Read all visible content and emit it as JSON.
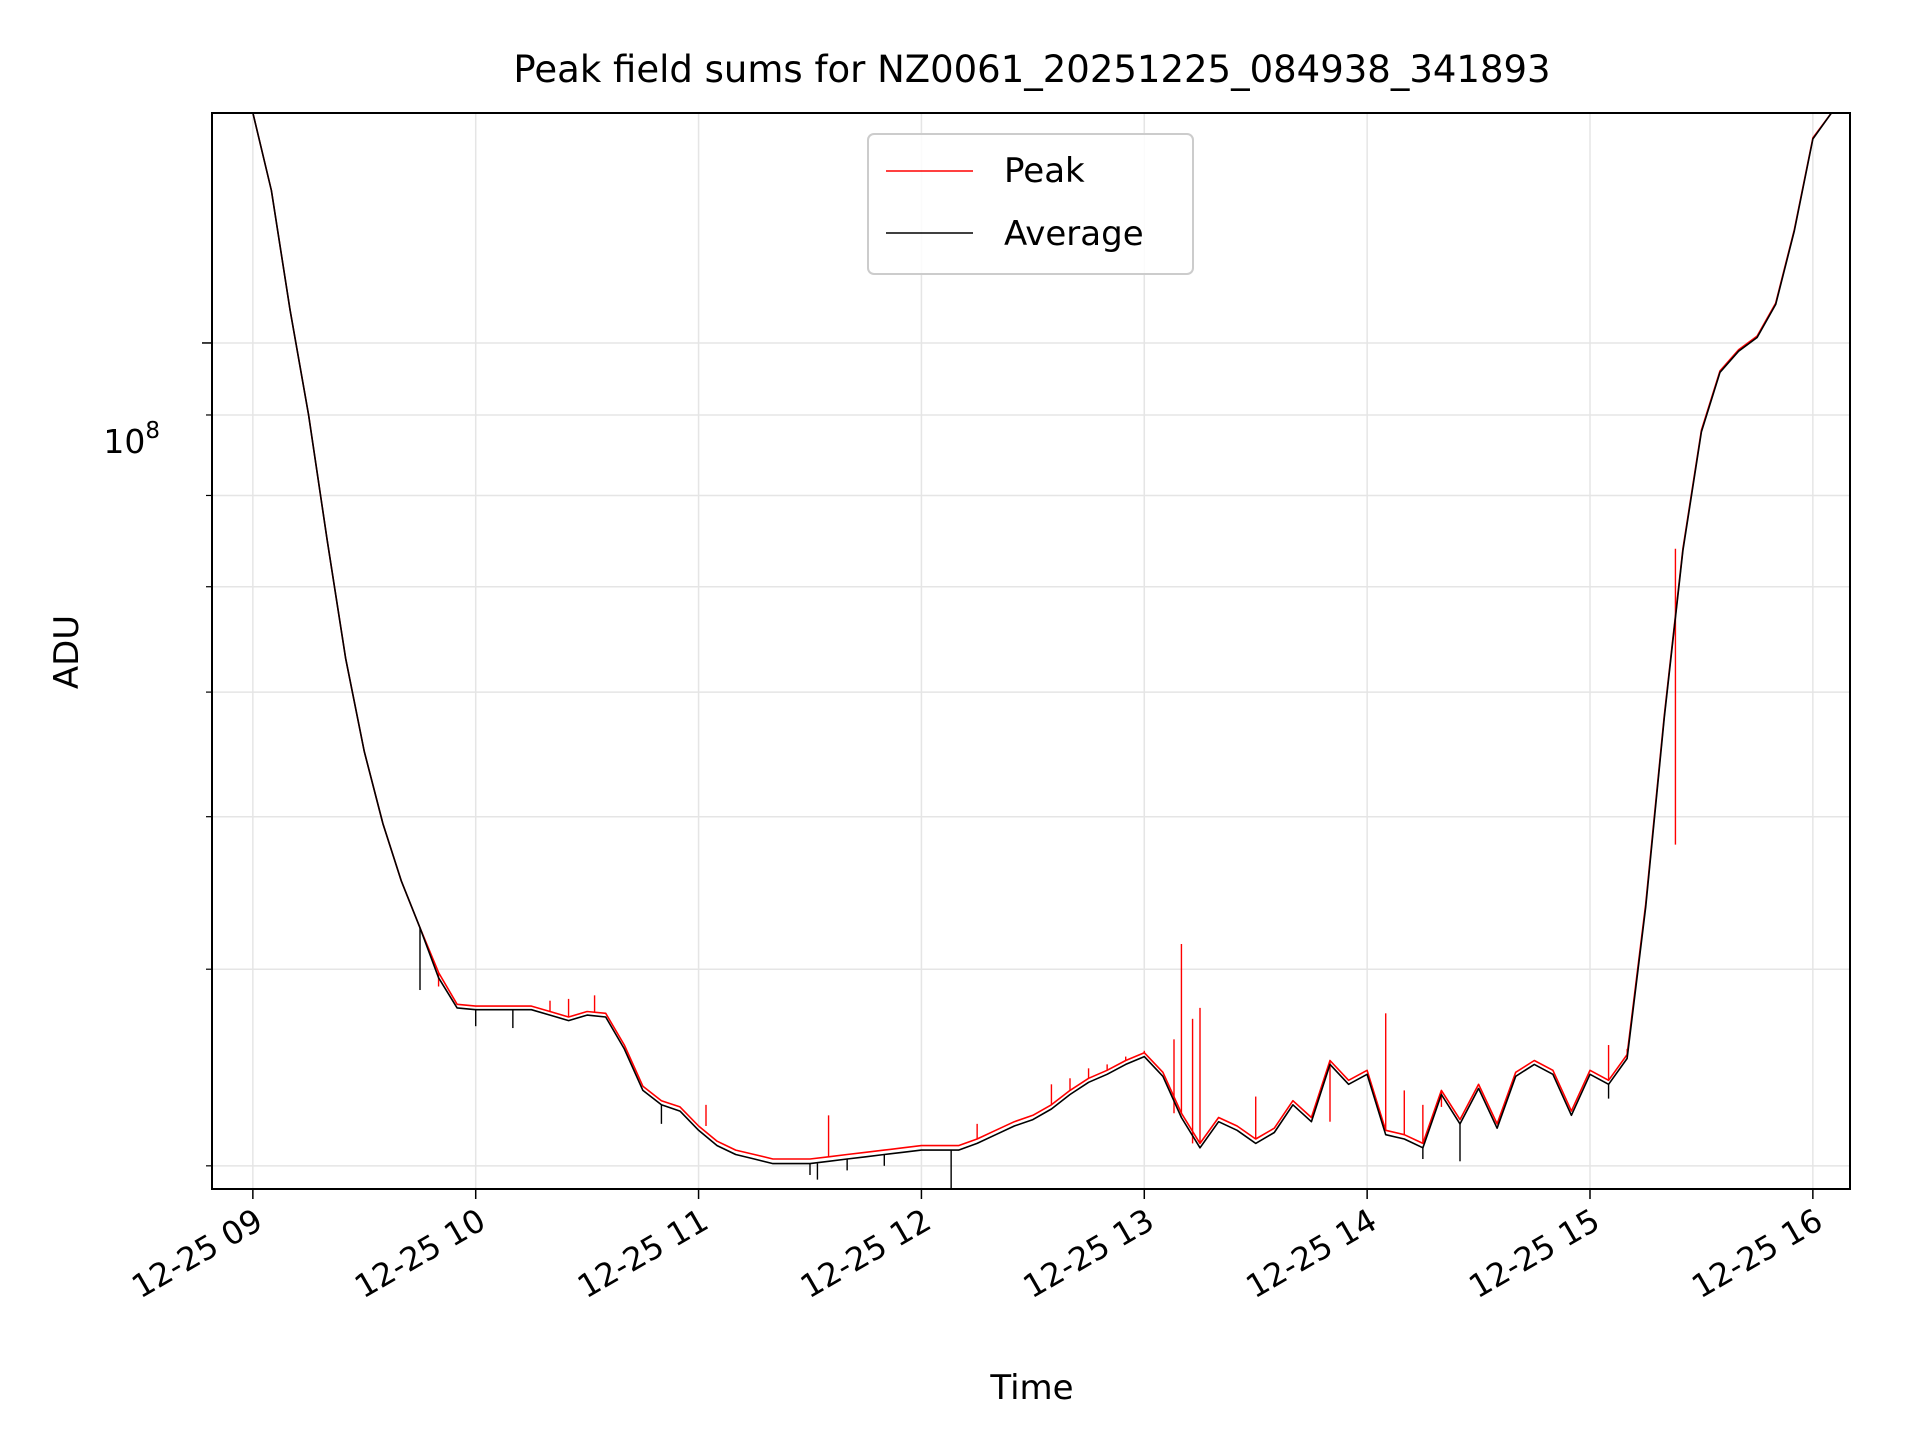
{
  "chart_data": {
    "type": "line",
    "title": "Peak field sums for NZ0061_20251225_084938_341893",
    "xlabel": "Time",
    "ylabel": "ADU",
    "y_scale": "log",
    "y_tick_label": "10",
    "y_tick_exponent": "8",
    "y_tick_value": 100000000,
    "x_tick_labels": [
      "12-25 09",
      "12-25 10",
      "12-25 11",
      "12-25 12",
      "12-25 13",
      "12-25 14",
      "12-25 15",
      "12-25 16"
    ],
    "x_ticks": [
      "2025-12-25 09:00",
      "2025-12-25 10:00",
      "2025-12-25 11:00",
      "2025-12-25 12:00",
      "2025-12-25 13:00",
      "2025-12-25 14:00",
      "2025-12-25 15:00",
      "2025-12-25 16:00"
    ],
    "xlim": [
      "2025-12-25 08:49",
      "2025-12-25 16:10"
    ],
    "ylim": [
      29000000,
      140000000
    ],
    "grid": true,
    "legend_position": "upper center",
    "series": [
      {
        "name": "Peak",
        "color": "#ff0000",
        "x": [
          "08:60",
          "09:05",
          "09:10",
          "09:15",
          "09:20",
          "09:25",
          "09:30",
          "09:35",
          "09:40",
          "09:45",
          "09:50",
          "09:55",
          "10:00",
          "10:05",
          "10:10",
          "10:15",
          "10:20",
          "10:25",
          "10:30",
          "10:35",
          "10:40",
          "10:45",
          "10:50",
          "10:55",
          "11:00",
          "11:05",
          "11:10",
          "11:15",
          "11:20",
          "11:25",
          "11:30",
          "11:35",
          "11:40",
          "11:45",
          "11:50",
          "11:55",
          "12:00",
          "12:05",
          "12:10",
          "12:15",
          "12:20",
          "12:25",
          "12:30",
          "12:35",
          "12:40",
          "12:45",
          "12:50",
          "12:55",
          "13:00",
          "13:05",
          "13:10",
          "13:15",
          "13:20",
          "13:25",
          "13:30",
          "13:35",
          "13:40",
          "13:45",
          "13:50",
          "13:55",
          "14:00",
          "14:05",
          "14:10",
          "14:15",
          "14:20",
          "14:25",
          "14:30",
          "14:35",
          "14:40",
          "14:45",
          "14:50",
          "14:55",
          "15:00",
          "15:05",
          "15:10",
          "15:15",
          "15:20",
          "15:25",
          "15:30",
          "15:35",
          "15:40",
          "15:45",
          "15:50",
          "15:55",
          "16:00",
          "16:05"
        ],
        "y": [
          140000000,
          125000000,
          105000000,
          90000000,
          75000000,
          63000000,
          55000000,
          49500000,
          45500000,
          42500000,
          39800000,
          38000000,
          37900000,
          37900000,
          37900000,
          37900000,
          37600000,
          37300000,
          37600000,
          37500000,
          35800000,
          33700000,
          33000000,
          32700000,
          31800000,
          31100000,
          30700000,
          30500000,
          30300000,
          30300000,
          30300000,
          30400000,
          30500000,
          30600000,
          30700000,
          30800000,
          30900000,
          30900000,
          30900000,
          31200000,
          31600000,
          32000000,
          32300000,
          32800000,
          33500000,
          34100000,
          34500000,
          35000000,
          35400000,
          34400000,
          32400000,
          31000000,
          32200000,
          31800000,
          31200000,
          31700000,
          33000000,
          32200000,
          35000000,
          34000000,
          34500000,
          31600000,
          31400000,
          31000000,
          33500000,
          32100000,
          33800000,
          31900000,
          34400000,
          35000000,
          34500000,
          32500000,
          34500000,
          34000000,
          35300000,
          44000000,
          58000000,
          74000000,
          88000000,
          96000000,
          99000000,
          101000000,
          106000000,
          118000000,
          135000000,
          140000000
        ],
        "spikes": [
          {
            "x": "09:50",
            "y": 39000000
          },
          {
            "x": "10:20",
            "y": 38200000
          },
          {
            "x": "10:25",
            "y": 38300000
          },
          {
            "x": "10:32",
            "y": 38500000
          },
          {
            "x": "11:02",
            "y": 32800000
          },
          {
            "x": "11:35",
            "y": 32300000
          },
          {
            "x": "12:15",
            "y": 31900000
          },
          {
            "x": "12:35",
            "y": 33800000
          },
          {
            "x": "12:40",
            "y": 34100000
          },
          {
            "x": "12:45",
            "y": 34600000
          },
          {
            "x": "12:50",
            "y": 34800000
          },
          {
            "x": "12:55",
            "y": 35200000
          },
          {
            "x": "13:00",
            "y": 35500000
          },
          {
            "x": "13:08",
            "y": 36100000
          },
          {
            "x": "13:10",
            "y": 41500000
          },
          {
            "x": "13:13",
            "y": 37200000
          },
          {
            "x": "13:15",
            "y": 37800000
          },
          {
            "x": "13:30",
            "y": 33200000
          },
          {
            "x": "13:40",
            "y": 33000000
          },
          {
            "x": "13:50",
            "y": 32000000
          },
          {
            "x": "14:05",
            "y": 37500000
          },
          {
            "x": "14:10",
            "y": 33500000
          },
          {
            "x": "14:15",
            "y": 32800000
          },
          {
            "x": "14:20",
            "y": 32700000
          },
          {
            "x": "15:05",
            "y": 35800000
          },
          {
            "x": "15:10",
            "y": 35600000
          },
          {
            "x": "15:23",
            "y": 48000000
          }
        ]
      },
      {
        "name": "Average",
        "color": "#000000",
        "x": [
          "08:60",
          "09:05",
          "09:10",
          "09:15",
          "09:20",
          "09:25",
          "09:30",
          "09:35",
          "09:40",
          "09:45",
          "09:50",
          "09:55",
          "10:00",
          "10:05",
          "10:10",
          "10:15",
          "10:20",
          "10:25",
          "10:30",
          "10:35",
          "10:40",
          "10:45",
          "10:50",
          "10:55",
          "11:00",
          "11:05",
          "11:10",
          "11:15",
          "11:20",
          "11:25",
          "11:30",
          "11:35",
          "11:40",
          "11:45",
          "11:50",
          "11:55",
          "12:00",
          "12:05",
          "12:10",
          "12:15",
          "12:20",
          "12:25",
          "12:30",
          "12:35",
          "12:40",
          "12:45",
          "12:50",
          "12:55",
          "13:00",
          "13:05",
          "13:10",
          "13:15",
          "13:20",
          "13:25",
          "13:30",
          "13:35",
          "13:40",
          "13:45",
          "13:50",
          "13:55",
          "14:00",
          "14:05",
          "14:10",
          "14:15",
          "14:20",
          "14:25",
          "14:30",
          "14:35",
          "14:40",
          "14:45",
          "14:50",
          "14:55",
          "15:00",
          "15:05",
          "15:10",
          "15:15",
          "15:20",
          "15:25",
          "15:30",
          "15:35",
          "15:40",
          "15:45",
          "15:50",
          "15:55",
          "16:00",
          "16:05"
        ],
        "y": [
          140000000,
          125000000,
          105000000,
          90000000,
          75000000,
          63000000,
          55000000,
          49500000,
          45500000,
          42500000,
          39500000,
          37800000,
          37700000,
          37700000,
          37700000,
          37700000,
          37400000,
          37100000,
          37400000,
          37300000,
          35600000,
          33500000,
          32800000,
          32500000,
          31600000,
          30900000,
          30500000,
          30300000,
          30100000,
          30100000,
          30100000,
          30200000,
          30300000,
          30400000,
          30500000,
          30600000,
          30700000,
          30700000,
          30700000,
          31000000,
          31400000,
          31800000,
          32100000,
          32600000,
          33300000,
          33900000,
          34300000,
          34800000,
          35200000,
          34200000,
          32200000,
          30800000,
          32000000,
          31600000,
          31000000,
          31500000,
          32800000,
          32000000,
          34800000,
          33800000,
          34300000,
          31400000,
          31200000,
          30800000,
          33300000,
          31900000,
          33600000,
          31700000,
          34200000,
          34800000,
          34300000,
          32300000,
          34300000,
          33800000,
          35100000,
          43800000,
          57800000,
          73800000,
          87800000,
          95800000,
          98800000,
          100800000,
          105800000,
          117800000,
          134800000,
          140000000
        ],
        "dips": [
          {
            "x": "09:45",
            "y": 38800000
          },
          {
            "x": "10:00",
            "y": 36800000
          },
          {
            "x": "10:10",
            "y": 36700000
          },
          {
            "x": "10:50",
            "y": 31900000
          },
          {
            "x": "11:30",
            "y": 29600000
          },
          {
            "x": "11:32",
            "y": 29400000
          },
          {
            "x": "11:40",
            "y": 29800000
          },
          {
            "x": "11:50",
            "y": 30000000
          },
          {
            "x": "12:08",
            "y": 29000000
          },
          {
            "x": "14:15",
            "y": 30300000
          },
          {
            "x": "14:25",
            "y": 30200000
          },
          {
            "x": "15:05",
            "y": 33100000
          }
        ]
      }
    ]
  }
}
